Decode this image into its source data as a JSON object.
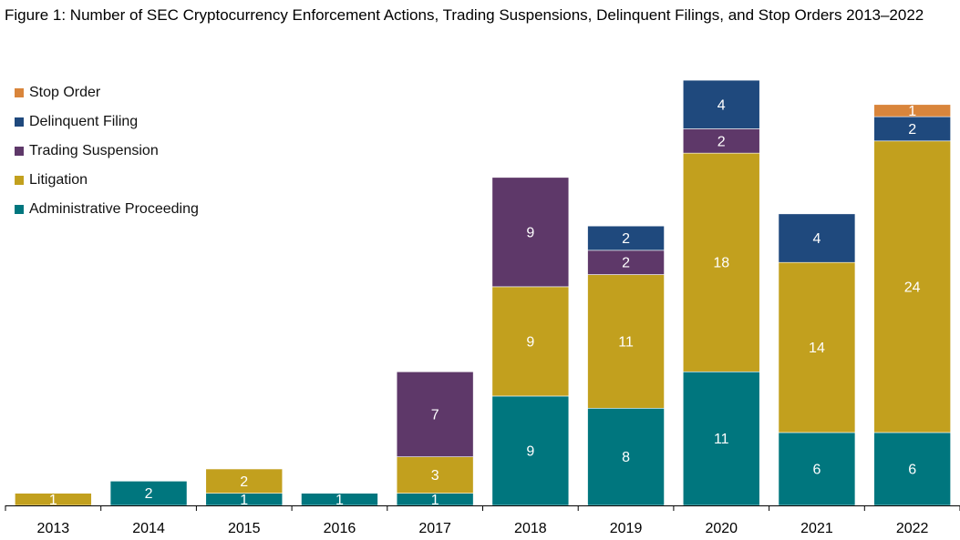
{
  "chart_data": {
    "type": "bar",
    "stacked": true,
    "title": "Figure 1: Number of SEC Cryptocurrency Enforcement Actions, Trading Suspensions, Delinquent Filings, and Stop Orders 2013–2022",
    "xlabel": "",
    "ylabel": "",
    "categories": [
      "2013",
      "2014",
      "2015",
      "2016",
      "2017",
      "2018",
      "2019",
      "2020",
      "2021",
      "2022"
    ],
    "series": [
      {
        "name": "Administrative Proceeding",
        "color": "#00767E",
        "values": [
          0,
          2,
          1,
          1,
          1,
          9,
          8,
          11,
          6,
          6
        ]
      },
      {
        "name": "Litigation",
        "color": "#C2A01E",
        "values": [
          1,
          0,
          2,
          0,
          3,
          9,
          11,
          18,
          14,
          24
        ]
      },
      {
        "name": "Trading Suspension",
        "color": "#5E3869",
        "values": [
          0,
          0,
          0,
          0,
          7,
          9,
          2,
          2,
          0,
          0
        ]
      },
      {
        "name": "Delinquent Filing",
        "color": "#1F497D",
        "values": [
          0,
          0,
          0,
          0,
          0,
          0,
          2,
          4,
          4,
          2
        ]
      },
      {
        "name": "Stop Order",
        "color": "#D9853B",
        "values": [
          0,
          0,
          0,
          0,
          0,
          0,
          0,
          0,
          0,
          1
        ]
      }
    ],
    "ylim": [
      0,
      35
    ],
    "grid": false,
    "legend_position": "top-left",
    "legend_order": [
      "Stop Order",
      "Delinquent Filing",
      "Trading Suspension",
      "Litigation",
      "Administrative Proceeding"
    ]
  }
}
